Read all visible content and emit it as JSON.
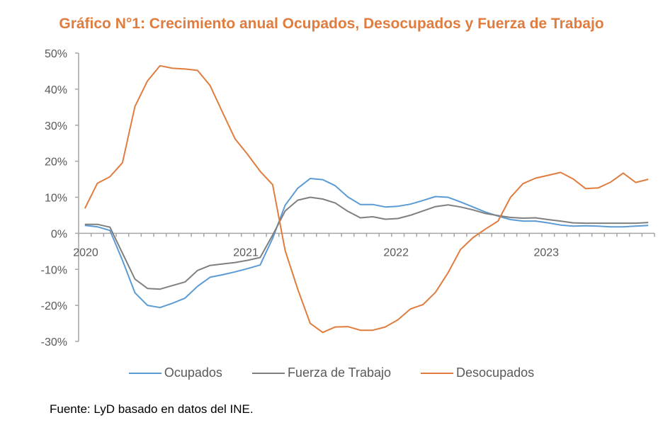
{
  "chart_data": {
    "type": "line",
    "title": "Gráfico N°1: Crecimiento anual Ocupados, Desocupados y Fuerza de Trabajo",
    "xlabel": "",
    "ylabel": "",
    "ylim": [
      -30,
      50
    ],
    "yticks": [
      "50%",
      "40%",
      "30%",
      "20%",
      "10%",
      "0%",
      "-10%",
      "-20%",
      "-30%"
    ],
    "ytick_values": [
      50,
      40,
      30,
      20,
      10,
      0,
      -10,
      -20,
      -30
    ],
    "xtick_labels": [
      "2020",
      "2021",
      "2022",
      "2023"
    ],
    "xtick_indices": [
      0,
      12,
      24,
      36
    ],
    "n_points": 46,
    "grid": false,
    "legend_position": "bottom",
    "series": [
      {
        "name": "Ocupados",
        "color": "#5B9BD5",
        "values": [
          2.2,
          1.8,
          0.8,
          -7.5,
          -16.5,
          -20.0,
          -20.6,
          -19.4,
          -18.0,
          -14.7,
          -12.2,
          -11.5,
          -10.7,
          -9.8,
          -8.8,
          -1.4,
          7.8,
          12.5,
          15.2,
          14.9,
          13.2,
          10.1,
          8.0,
          8.0,
          7.3,
          7.5,
          8.1,
          9.1,
          10.2,
          10.0,
          8.7,
          7.3,
          5.9,
          4.8,
          3.8,
          3.4,
          3.4,
          2.9,
          2.3,
          2.0,
          2.1,
          2.0,
          1.8,
          1.8,
          2.0,
          2.2
        ]
      },
      {
        "name": "Fuerza de Trabajo",
        "color": "#7F7F7F",
        "values": [
          2.5,
          2.5,
          1.7,
          -5.5,
          -12.7,
          -15.3,
          -15.5,
          -14.5,
          -13.5,
          -10.3,
          -8.9,
          -8.5,
          -8.1,
          -7.5,
          -6.7,
          -0.5,
          6.2,
          9.2,
          10.0,
          9.5,
          8.4,
          6.1,
          4.3,
          4.6,
          3.9,
          4.1,
          5.0,
          6.2,
          7.4,
          7.9,
          7.3,
          6.5,
          5.5,
          4.9,
          4.4,
          4.2,
          4.3,
          3.8,
          3.4,
          2.9,
          2.8,
          2.8,
          2.8,
          2.8,
          2.8,
          3.0
        ]
      },
      {
        "name": "Desocupados",
        "color": "#E07C3E",
        "values": [
          6.9,
          13.9,
          15.7,
          19.6,
          35.2,
          42.3,
          46.5,
          45.8,
          45.6,
          45.2,
          41.0,
          33.5,
          26.2,
          21.9,
          17.2,
          13.5,
          -4.8,
          -15.5,
          -25.0,
          -27.5,
          -26.0,
          -25.9,
          -26.9,
          -26.9,
          -26.0,
          -24.0,
          -21.0,
          -19.8,
          -16.4,
          -11.0,
          -4.5,
          -1.2,
          1.2,
          3.4,
          10.0,
          13.8,
          15.3,
          16.1,
          16.9,
          15.1,
          12.4,
          12.6,
          14.2,
          16.7,
          14.1,
          15.0
        ]
      }
    ]
  },
  "legend": {
    "items": [
      {
        "label": "Ocupados",
        "color": "#5B9BD5"
      },
      {
        "label": "Fuerza de Trabajo",
        "color": "#7F7F7F"
      },
      {
        "label": "Desocupados",
        "color": "#E07C3E"
      }
    ]
  },
  "source": "Fuente: LyD basado en datos del INE."
}
